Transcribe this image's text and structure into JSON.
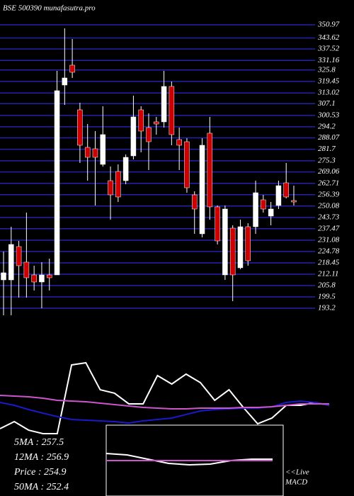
{
  "chart_data": {
    "type": "candlestick",
    "title": "BSE 500390 munafasutra.pro",
    "open": [
      208.97,
      208.97,
      227.52,
      218.84,
      211.74,
      207.79,
      211.74,
      211.74,
      317.44,
      328.49,
      303.64,
      282.74,
      281.95,
      273.27,
      264.19,
      269.32,
      264.19,
      278.0,
      303.64,
      293.78,
      296.93,
      296.93,
      316.66,
      287.08,
      285.89,
      256.31,
      234.62,
      290.63,
      249.61,
      211.74,
      237.77,
      215.69,
      238.56,
      238.56,
      253.55,
      244.48,
      250.4,
      263.01,
      253.15
    ],
    "high": [
      224.76,
      238.56,
      230.67,
      246.45,
      216.87,
      218.84,
      220.81,
      325.33,
      349.0,
      343.08,
      307.59,
      295.75,
      291.81,
      305.61,
      272.08,
      273.27,
      278.79,
      311.53,
      305.61,
      301.67,
      299.7,
      325.33,
      319.42,
      293.78,
      287.86,
      258.28,
      287.86,
      299.7,
      250.4,
      250.4,
      239.35,
      242.51,
      240.53,
      264.19,
      256.31,
      252.36,
      264.19,
      274.06,
      261.43
    ],
    "low": [
      189.26,
      189.26,
      199.12,
      199.12,
      203.06,
      193.2,
      203.06,
      211.74,
      306.4,
      321.39,
      274.06,
      264.19,
      250.4,
      272.08,
      242.51,
      252.36,
      262.22,
      276.03,
      279.97,
      270.11,
      289.84,
      293.78,
      283.92,
      270.11,
      257.49,
      234.62,
      232.64,
      242.51,
      228.7,
      208.97,
      197.15,
      214.9,
      216.87,
      234.62,
      246.45,
      239.35,
      248.42,
      254.34,
      250.4
    ],
    "close": [
      212.93,
      228.7,
      216.87,
      210.16,
      207.79,
      211.74,
      210.16,
      314.29,
      321.39,
      324.54,
      283.92,
      277.21,
      277.21,
      289.84,
      256.31,
      255.13,
      277.21,
      299.7,
      291.81,
      285.89,
      295.75,
      316.66,
      289.84,
      283.92,
      260.25,
      248.42,
      283.92,
      249.61,
      230.67,
      248.42,
      211.74,
      238.56,
      219.63,
      257.49,
      248.42,
      248.42,
      261.43,
      255.13,
      252.36
    ],
    "up_color": "#ffffff",
    "down_color": "#cc0000",
    "ylim": [
      188.46,
      350.97
    ],
    "yticks": [
      350.97,
      343.62,
      337.52,
      331.16,
      325.8,
      319.45,
      313.02,
      307.1,
      300.53,
      294.2,
      288.07,
      281.7,
      275.3,
      269.06,
      262.71,
      256.39,
      250.08,
      243.73,
      237.47,
      231.08,
      224.78,
      218.45,
      212.11,
      205.8,
      199.5,
      193.2
    ],
    "grid_color": "#2222aa",
    "indicator": {
      "ylim": [
        0,
        100
      ],
      "series": [
        {
          "color": "#ffffff",
          "values": [
            12.5,
            20.8,
            10.8,
            6.7,
            6.7,
            87.5,
            90,
            58.3,
            54.2,
            41.7,
            41.7,
            75,
            65,
            76.7,
            66.7,
            45.8,
            58.3,
            37.5,
            18.3,
            25,
            40,
            40,
            43.3,
            40
          ]
        },
        {
          "color": "#1a1acc",
          "values": [
            43.3,
            40,
            35,
            30.8,
            26.7,
            23.3,
            22.5,
            21.7,
            20.8,
            19.2,
            21.7,
            23.3,
            25,
            29.2,
            33.3,
            35,
            35.8,
            36.7,
            36.7,
            38.3,
            43.3,
            45,
            43.3,
            40
          ]
        },
        {
          "color": "#cc55cc",
          "values": [
            51.7,
            50.8,
            50,
            48.3,
            45.8,
            45,
            44.2,
            42.5,
            40.8,
            39.2,
            37.5,
            36.7,
            35.8,
            35.8,
            36.7,
            36.7,
            36.7,
            37.5,
            37.5,
            38.3,
            40,
            41.7,
            41.7,
            41.7
          ]
        }
      ]
    },
    "macd": {
      "ylim": [
        0,
        100
      ],
      "series": [
        {
          "color": "#ffffff",
          "values": [
            60,
            58,
            52,
            46,
            44,
            45,
            50,
            52,
            52
          ]
        },
        {
          "color": "#cc55cc",
          "values": [
            50,
            50
          ]
        }
      ]
    },
    "legend": [
      "5MA : 257.5",
      "12MA : 256.9",
      "Price  : 254.9",
      "50MA : 252.4"
    ],
    "live_label": [
      "<<Live",
      "MACD"
    ]
  }
}
